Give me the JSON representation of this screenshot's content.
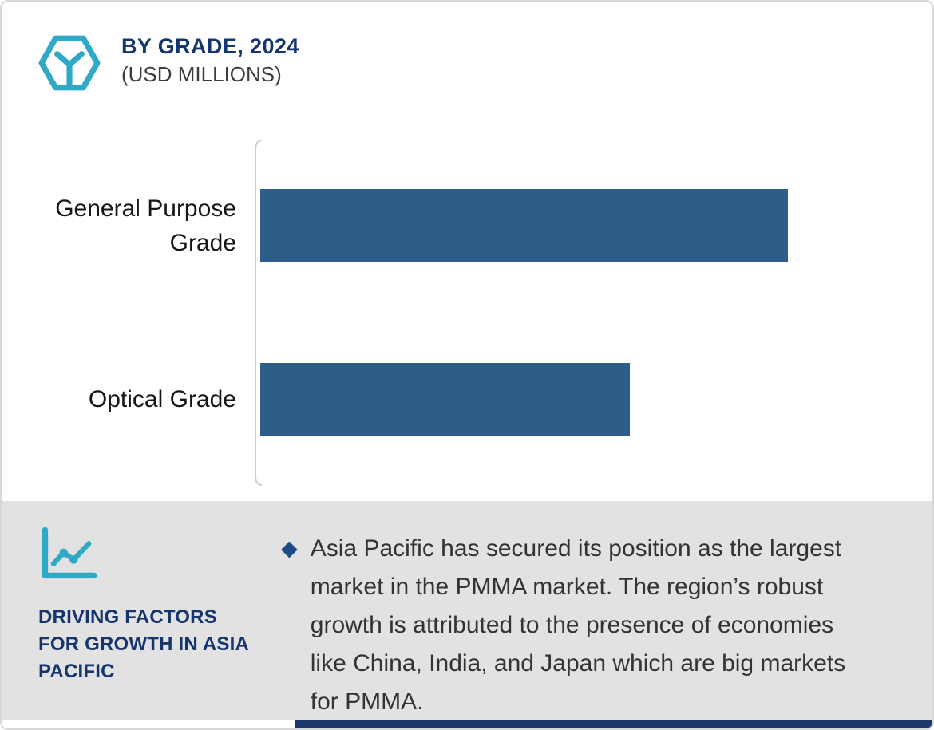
{
  "header": {
    "title": "BY GRADE, 2024",
    "subtitle": "(USD MILLIONS)",
    "icon": "hexagon-cube-icon"
  },
  "chart_data": {
    "type": "bar",
    "orientation": "horizontal",
    "title": "BY GRADE, 2024",
    "unit": "USD Millions",
    "categories": [
      "General Purpose Grade",
      "Optical Grade"
    ],
    "values": [
      100,
      70
    ],
    "xlim": [
      0,
      127
    ],
    "xlabel": "",
    "ylabel": "",
    "grid": false,
    "value_labels_shown": false,
    "bar_color": "#2e5d89",
    "axis_color": "#cfcfcf"
  },
  "footer": {
    "icon": "line-chart-icon",
    "heading": "DRIVING FACTORS FOR GROWTH IN ASIA PACIFIC",
    "bullet": "◆",
    "text": "Asia Pacific has secured its position as the largest market in the PMMA market. The region’s robust growth is attributed to the presence of economies like China, India, and Japan which are big markets for PMMA."
  },
  "colors": {
    "accent_teal": "#2fa9c6",
    "navy": "#14356e",
    "bar_blue": "#2e5d89",
    "panel_gray": "#e2e2e2",
    "bottom_bar_navy": "#1b3a6b"
  }
}
